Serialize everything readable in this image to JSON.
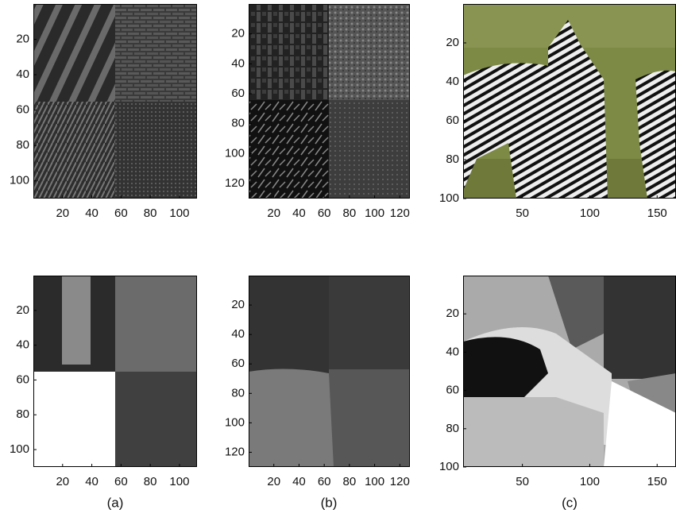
{
  "figure": {
    "panels": [
      {
        "xlim": [
          0,
          112
        ],
        "ylim": [
          0,
          110
        ],
        "xticks": [
          20,
          40,
          60,
          80,
          100
        ],
        "yticks": [
          20,
          40,
          60,
          80,
          100
        ]
      },
      {
        "xlim": [
          0,
          128
        ],
        "ylim": [
          0,
          130
        ],
        "xticks": [
          20,
          40,
          60,
          80,
          100,
          120
        ],
        "yticks": [
          20,
          40,
          60,
          80,
          100,
          120
        ]
      },
      {
        "xlim": [
          6,
          164
        ],
        "ylim": [
          0,
          100
        ],
        "xticks": [
          50,
          100,
          150
        ],
        "yticks": [
          20,
          40,
          60,
          80,
          100
        ]
      },
      {
        "xlim": [
          0,
          112
        ],
        "ylim": [
          0,
          110
        ],
        "xticks": [
          20,
          40,
          60,
          80,
          100
        ],
        "yticks": [
          20,
          40,
          60,
          80,
          100
        ]
      },
      {
        "xlim": [
          0,
          128
        ],
        "ylim": [
          0,
          130
        ],
        "xticks": [
          20,
          40,
          60,
          80,
          100,
          120
        ],
        "yticks": [
          20,
          40,
          60,
          80,
          100,
          120
        ]
      },
      {
        "xlim": [
          6,
          164
        ],
        "ylim": [
          0,
          100
        ],
        "xticks": [
          50,
          100,
          150
        ],
        "yticks": [
          20,
          40,
          60,
          80,
          100
        ]
      }
    ],
    "captions": [
      "(a)",
      "(b)",
      "(c)"
    ]
  }
}
